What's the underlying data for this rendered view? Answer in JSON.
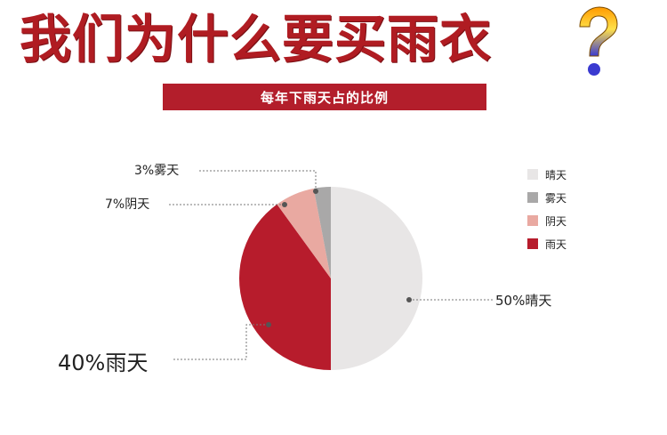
{
  "header": {
    "title": "我们为什么要买雨衣",
    "subtitle": "每年下雨天占的比例"
  },
  "colors": {
    "title": "#b01c22",
    "banner": "#b31e2b",
    "question_mark_gradient": [
      "#ff9a00",
      "#ffe14a",
      "#3a3ad0"
    ]
  },
  "chart_data": {
    "type": "pie",
    "title": "每年下雨天占的比例",
    "slices": [
      {
        "name": "晴天",
        "value": 50,
        "label": "50%晴天",
        "color": "#e8e6e6"
      },
      {
        "name": "雨天",
        "value": 40,
        "label": "40%雨天",
        "color": "#b71c2c"
      },
      {
        "name": "阴天",
        "value": 7,
        "label": "7%阴天",
        "color": "#e9a9a1"
      },
      {
        "name": "雾天",
        "value": 3,
        "label": "3%雾天",
        "color": "#a9a8a8"
      }
    ],
    "legend": {
      "position": "right",
      "entries": [
        {
          "name": "晴天",
          "color": "#e8e6e6"
        },
        {
          "name": "雾天",
          "color": "#a9a8a8"
        },
        {
          "name": "阴天",
          "color": "#e9a9a1"
        },
        {
          "name": "雨天",
          "color": "#b71c2c"
        }
      ]
    }
  }
}
